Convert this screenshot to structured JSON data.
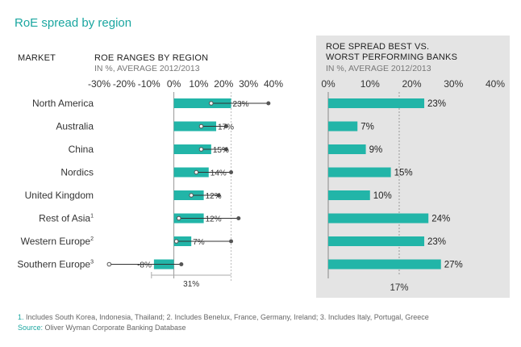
{
  "title": "RoE spread by region",
  "market_header": "MARKET",
  "left_header": "ROE RANGES BY REGION",
  "left_sub": "IN %, AVERAGE 2012/2013",
  "right_header_1": "ROE SPREAD BEST VS.",
  "right_header_2": "WORST PERFORMING BANKS",
  "right_sub": "IN %, AVERAGE 2012/2013",
  "footnote_numbers": "1.",
  "footnote_text": " Includes South Korea, Indonesia, Thailand; 2. Includes Benelux, France, Germany, Ireland; 3. Includes Italy, Portugal, Greece",
  "source_label": "Source:",
  "source_text": " Oliver Wyman Corporate Banking Database",
  "colors": {
    "teal": "#22b5a8",
    "title": "#1aa6a0",
    "panel": "#e4e4e4",
    "dot": "#555555"
  },
  "chart_data": [
    {
      "type": "bar",
      "title": "ROE RANGES BY REGION",
      "subtitle": "IN %, AVERAGE 2012/2013",
      "xlim": [
        -30,
        40
      ],
      "ticks": [
        -30,
        -20,
        -10,
        0,
        10,
        20,
        30,
        40
      ],
      "tick_labels": [
        "-30%",
        "-20%",
        "-10%",
        "0%",
        "10%",
        "20%",
        "30%",
        "40%"
      ],
      "categories": [
        "North America",
        "Australia",
        "China",
        "Nordics",
        "United Kingdom",
        "Rest of Asia",
        "Western Europe",
        "Southern Europe"
      ],
      "superscripts": [
        "",
        "",
        "",
        "",
        "",
        "1",
        "2",
        "3"
      ],
      "values": [
        23,
        17,
        15,
        14,
        12,
        12,
        7,
        -8
      ],
      "labels": [
        "23%",
        "17%",
        "15%",
        "14%",
        "12%",
        "12%",
        "7%",
        "-8%"
      ],
      "range_min": [
        15,
        11,
        11,
        9,
        7,
        2,
        1,
        -26
      ],
      "range_max": [
        38,
        21,
        21,
        23,
        18,
        26,
        23,
        3
      ],
      "reference_line": 23,
      "annotation_value": 31,
      "annotation_label": "31%"
    },
    {
      "type": "bar",
      "title": "ROE SPREAD BEST VS. WORST PERFORMING BANKS",
      "subtitle": "IN %, AVERAGE 2012/2013",
      "xlim": [
        0,
        40
      ],
      "ticks": [
        0,
        10,
        20,
        30,
        40
      ],
      "tick_labels": [
        "0%",
        "10%",
        "20%",
        "30%",
        "40%"
      ],
      "categories": [
        "North America",
        "Australia",
        "China",
        "Nordics",
        "United Kingdom",
        "Rest of Asia",
        "Western Europe",
        "Southern Europe"
      ],
      "values": [
        23,
        7,
        9,
        15,
        10,
        24,
        23,
        27
      ],
      "labels": [
        "23%",
        "7%",
        "9%",
        "15%",
        "10%",
        "24%",
        "23%",
        "27%"
      ],
      "average": 17,
      "average_label": "17%"
    }
  ]
}
